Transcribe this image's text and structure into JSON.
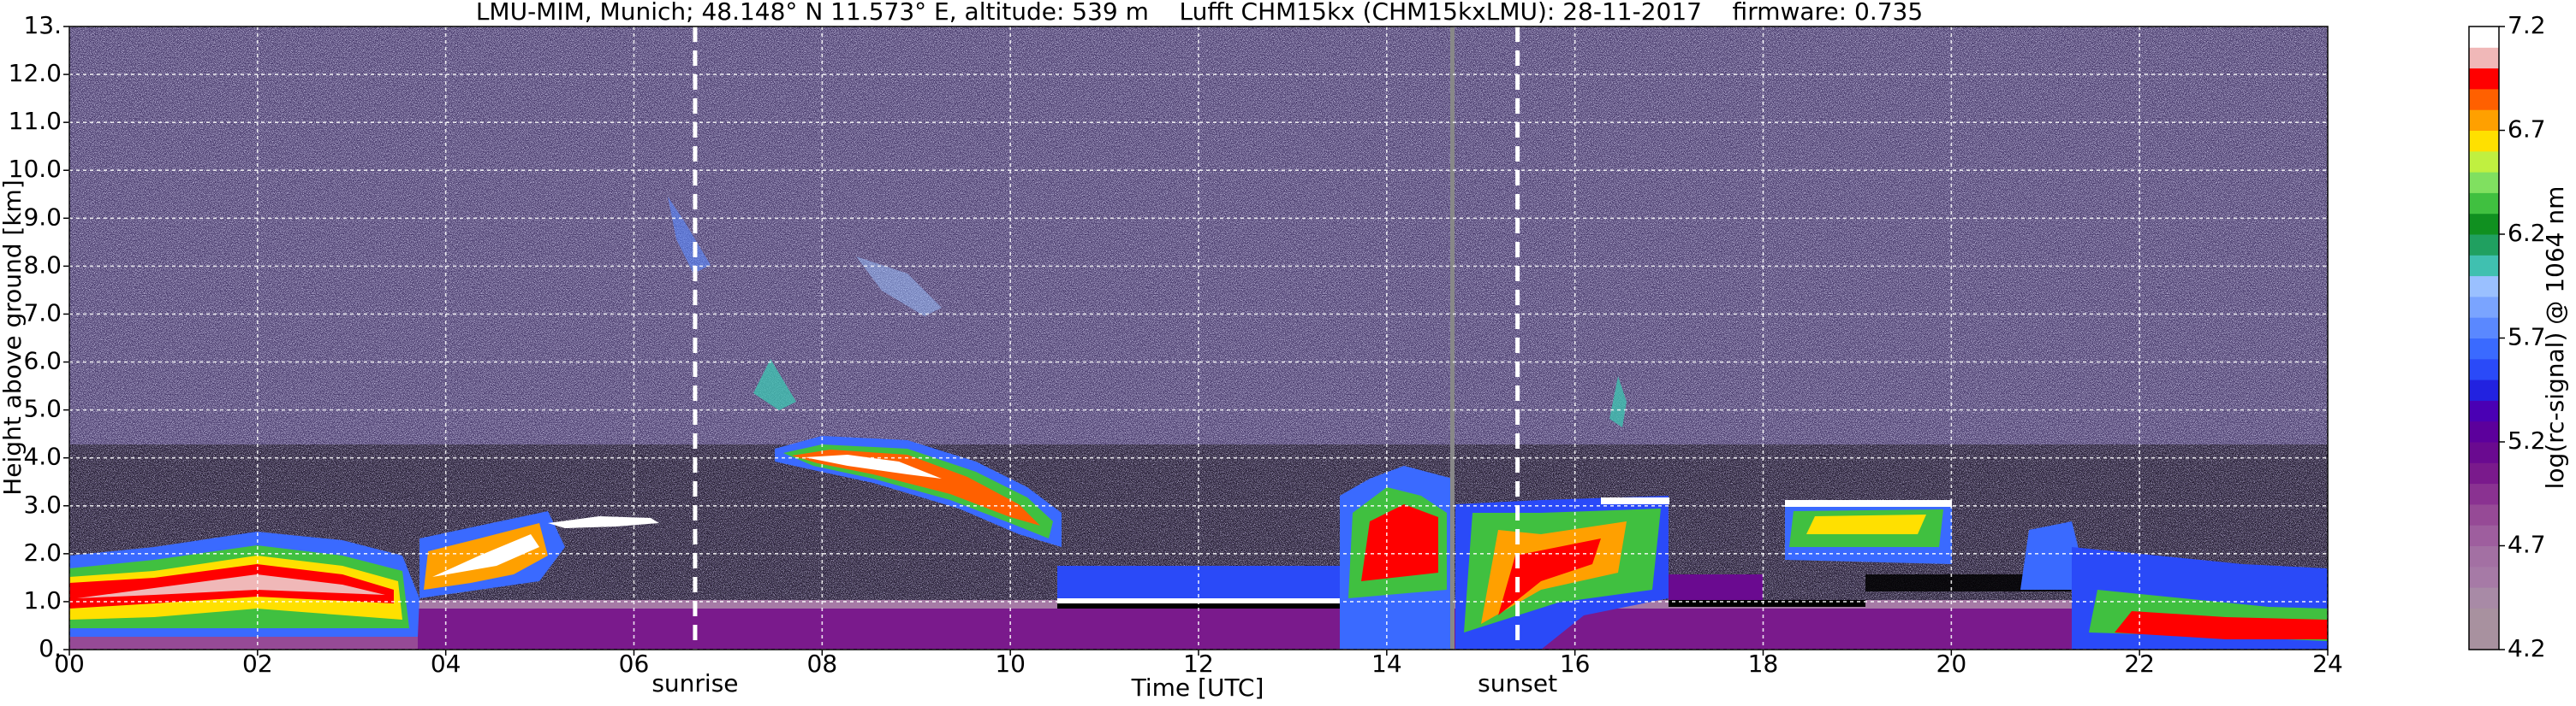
{
  "chart_data": {
    "type": "heatmap",
    "title": "LMU-MIM, Munich; 48.148° N 11.573° E, altitude: 539 m    Lufft CHM15kx (CHM15kxLMU): 28-11-2017    firmware: 0.735",
    "xlabel": "Time [UTC]",
    "ylabel": "Height above ground [km]",
    "xlim": [
      0,
      24
    ],
    "ylim": [
      0,
      13
    ],
    "xticks": [
      {
        "value": 0,
        "label": "00"
      },
      {
        "value": 2,
        "label": "02"
      },
      {
        "value": 4,
        "label": "04"
      },
      {
        "value": 6,
        "label": "06"
      },
      {
        "value": 8,
        "label": "08"
      },
      10,
      12,
      14,
      16,
      18,
      20,
      22,
      24
    ],
    "yticks": [
      {
        "value": 0,
        "label": "0."
      },
      {
        "value": 1,
        "label": "1.0"
      },
      {
        "value": 2,
        "label": "2.0"
      },
      {
        "value": 3,
        "label": "3.0"
      },
      {
        "value": 4,
        "label": "4.0"
      },
      {
        "value": 5,
        "label": "5.0"
      },
      {
        "value": 6,
        "label": "6.0"
      },
      {
        "value": 7,
        "label": "7.0"
      },
      {
        "value": 8,
        "label": "8.0"
      },
      {
        "value": 9,
        "label": "9.0"
      },
      {
        "value": 10,
        "label": "10.0"
      },
      {
        "value": 11,
        "label": "11.0"
      },
      {
        "value": 12,
        "label": "12.0"
      },
      {
        "value": 13,
        "label": "13."
      }
    ],
    "grid": true,
    "annotations": [
      {
        "text": "sunrise",
        "x": 6.65
      },
      {
        "text": "sunset",
        "x": 15.39
      }
    ],
    "colorbar": {
      "label": "log(rc-signal) @ 1064 nm",
      "lim": [
        4.2,
        7.2
      ],
      "ticks": [
        4.2,
        4.7,
        5.2,
        5.7,
        6.2,
        6.7,
        7.2
      ],
      "colors": [
        "#a8919f",
        "#a8919f",
        "#a88aa6",
        "#a67aa6",
        "#a370a3",
        "#9e5e9e",
        "#964a96",
        "#8a3291",
        "#7a1a8c",
        "#6a0a90",
        "#5c009c",
        "#4a00b4",
        "#2222e0",
        "#2a4af8",
        "#3a6aff",
        "#5a88ff",
        "#7aa4ff",
        "#9ac0ff",
        "#40c0b0",
        "#20a060",
        "#109020",
        "#40c040",
        "#80e060",
        "#c0f040",
        "#ffe000",
        "#ffa000",
        "#ff6000",
        "#ff0000",
        "#f0b8b8",
        "#ffffff"
      ]
    }
  }
}
